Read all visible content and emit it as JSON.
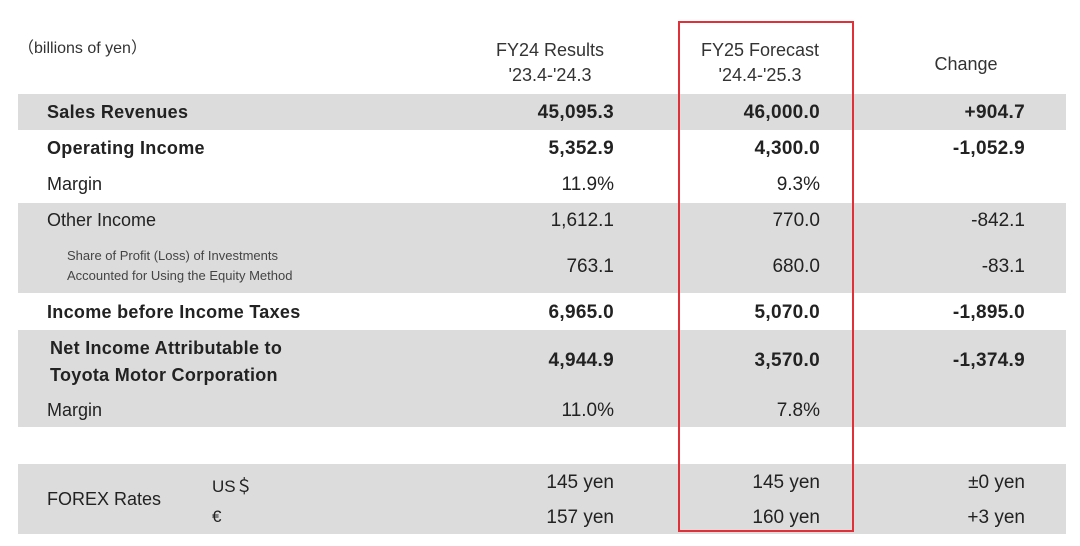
{
  "unit_note": "（billions of yen）",
  "columns": {
    "fy24": {
      "line1": "FY24 Results",
      "line2": "'23.4-'24.3"
    },
    "fy25": {
      "line1": "FY25 Forecast",
      "line2": "'24.4-'25.3"
    },
    "change": "Change"
  },
  "rows": {
    "sales": {
      "label": "Sales Revenues",
      "fy24": "45,095.3",
      "fy25": "46,000.0",
      "change": "+904.7"
    },
    "operating": {
      "label": "Operating Income",
      "fy24": "5,352.9",
      "fy25": "4,300.0",
      "change": "-1,052.9"
    },
    "op_margin": {
      "label": "Margin",
      "fy24": "11.9%",
      "fy25": "9.3%"
    },
    "other": {
      "label": "Other Income",
      "fy24": "1,612.1",
      "fy25": "770.0",
      "change": "-842.1"
    },
    "equity": {
      "label_line1": "Share of Profit (Loss) of Investments",
      "label_line2": "Accounted for Using the Equity Method",
      "fy24": "763.1",
      "fy25": "680.0",
      "change": "-83.1"
    },
    "pretax": {
      "label": "Income before Income Taxes",
      "fy24": "6,965.0",
      "fy25": "5,070.0",
      "change": "-1,895.0"
    },
    "net": {
      "label_line1": "Net Income Attributable to",
      "label_line2": "Toyota Motor Corporation",
      "fy24": "4,944.9",
      "fy25": "3,570.0",
      "change": "-1,374.9"
    },
    "net_margin": {
      "label": "Margin",
      "fy24": "11.0%",
      "fy25": "7.8%"
    },
    "forex": {
      "label": "FOREX Rates",
      "usd": {
        "currency": "US＄",
        "fy24": "145 yen",
        "fy25": "145 yen",
        "change": "±0 yen"
      },
      "eur": {
        "currency": "€",
        "fy24": "157 yen",
        "fy25": "160 yen",
        "change": "+3 yen"
      }
    }
  },
  "colors": {
    "band": "#dcdcdc",
    "highlight": "#e0303a"
  }
}
